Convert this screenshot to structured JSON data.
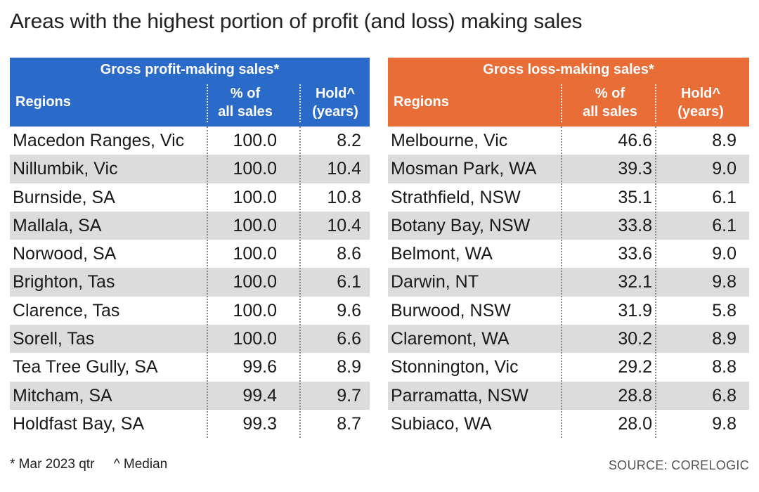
{
  "title": "Areas with the highest portion of profit (and loss) making sales",
  "chart_data": [
    {
      "type": "table",
      "title": "Gross profit-making sales*",
      "columns": [
        "Regions",
        "% of all sales",
        "Hold^ (years)"
      ],
      "column_lines": [
        [
          "Regions"
        ],
        [
          "% of",
          "all sales"
        ],
        [
          "Hold^",
          "(years)"
        ]
      ],
      "rows": [
        [
          "Macedon Ranges, Vic",
          "100.0",
          "8.2"
        ],
        [
          "Nillumbik, Vic",
          "100.0",
          "10.4"
        ],
        [
          "Burnside, SA",
          "100.0",
          "10.8"
        ],
        [
          "Mallala, SA",
          "100.0",
          "10.4"
        ],
        [
          "Norwood, SA",
          "100.0",
          "8.6"
        ],
        [
          "Brighton, Tas",
          "100.0",
          "6.1"
        ],
        [
          "Clarence, Tas",
          "100.0",
          "9.6"
        ],
        [
          "Sorell, Tas",
          "100.0",
          "6.6"
        ],
        [
          "Tea Tree Gully, SA",
          "99.6",
          "8.9"
        ],
        [
          "Mitcham, SA",
          "99.4",
          "9.7"
        ],
        [
          "Holdfast Bay, SA",
          "99.3",
          "8.7"
        ]
      ],
      "header_color": "#2a6ac9"
    },
    {
      "type": "table",
      "title": "Gross loss-making sales*",
      "columns": [
        "Regions",
        "% of all sales",
        "Hold^ (years)"
      ],
      "column_lines": [
        [
          "Regions"
        ],
        [
          "% of",
          "all sales"
        ],
        [
          "Hold^",
          "(years)"
        ]
      ],
      "rows": [
        [
          "Melbourne, Vic",
          "46.6",
          "8.9"
        ],
        [
          "Mosman Park, WA",
          "39.3",
          "9.0"
        ],
        [
          "Strathfield, NSW",
          "35.1",
          "6.1"
        ],
        [
          "Botany Bay, NSW",
          "33.8",
          "6.1"
        ],
        [
          "Belmont, WA",
          "33.6",
          "9.0"
        ],
        [
          "Darwin, NT",
          "32.1",
          "9.8"
        ],
        [
          "Burwood, NSW",
          "31.9",
          "5.8"
        ],
        [
          "Claremont, WA",
          "30.2",
          "8.9"
        ],
        [
          "Stonnington, Vic",
          "29.2",
          "8.8"
        ],
        [
          "Parramatta, NSW",
          "28.8",
          "6.8"
        ],
        [
          "Subiaco, WA",
          "28.0",
          "9.8"
        ]
      ],
      "header_color": "#e86d37"
    }
  ],
  "footnotes": {
    "asterisk": "* Mar 2023 qtr",
    "caret": "^ Median"
  },
  "source": "SOURCE: CORELOGIC",
  "colors": {
    "row_alt": "#dcdcdc",
    "text": "#1a1a1a"
  }
}
